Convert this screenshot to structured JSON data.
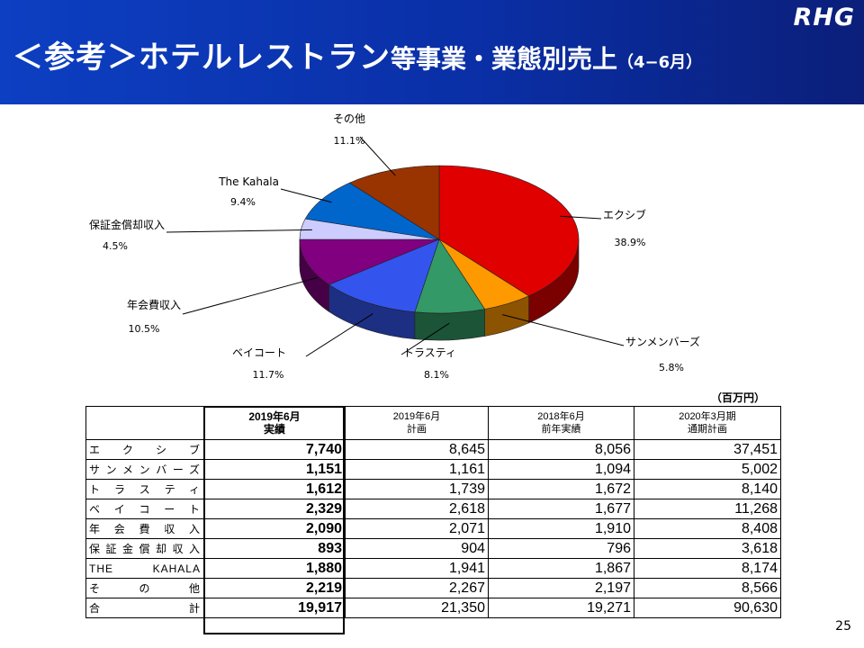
{
  "header": {
    "title_main": "＜参考＞ホテルレストラン",
    "title_sub": "等事業・業態別売上",
    "title_period": "（4−6月）",
    "logo_text": "RHG"
  },
  "chart_data": {
    "type": "pie",
    "title": "",
    "slices": [
      {
        "label": "エクシブ",
        "percent": 38.9,
        "percent_label": "38.9%",
        "color": "#e00000"
      },
      {
        "label": "サンメンバーズ",
        "percent": 5.8,
        "percent_label": "5.8%",
        "color": "#ff9900"
      },
      {
        "label": "トラスティ",
        "percent": 8.1,
        "percent_label": "8.1%",
        "color": "#339966"
      },
      {
        "label": "ベイコート",
        "percent": 11.7,
        "percent_label": "11.7%",
        "color": "#3355ee"
      },
      {
        "label": "年会費収入",
        "percent": 10.5,
        "percent_label": "10.5%",
        "color": "#800080"
      },
      {
        "label": "保証金償却収入",
        "percent": 4.5,
        "percent_label": "4.5%",
        "color": "#ccccff"
      },
      {
        "label": "The Kahala",
        "percent": 9.4,
        "percent_label": "9.4%",
        "color": "#0066cc"
      },
      {
        "label": "その他",
        "percent": 11.1,
        "percent_label": "11.1%",
        "color": "#993300"
      }
    ]
  },
  "table": {
    "unit": "（百万円）",
    "columns": [
      {
        "line1": "2019年6月",
        "line2": "実績"
      },
      {
        "line1": "2019年6月",
        "line2": "計画"
      },
      {
        "line1": "2018年6月",
        "line2": "前年実績"
      },
      {
        "line1": "2020年3月期",
        "line2": "通期計画"
      }
    ],
    "rows": [
      {
        "name": "エクシブ",
        "values": [
          "7,740",
          "8,645",
          "8,056",
          "37,451"
        ]
      },
      {
        "name": "サンメンバーズ",
        "values": [
          "1,151",
          "1,161",
          "1,094",
          "5,002"
        ]
      },
      {
        "name": "トラスティ",
        "values": [
          "1,612",
          "1,739",
          "1,672",
          "8,140"
        ]
      },
      {
        "name": "ベイコート",
        "values": [
          "2,329",
          "2,618",
          "1,677",
          "11,268"
        ]
      },
      {
        "name": "年会費収入",
        "values": [
          "2,090",
          "2,071",
          "1,910",
          "8,408"
        ]
      },
      {
        "name": "保証金償却収入",
        "values": [
          "893",
          "904",
          "796",
          "3,618"
        ]
      },
      {
        "name": "THE KAHALA",
        "values": [
          "1,880",
          "1,941",
          "1,867",
          "8,174"
        ]
      },
      {
        "name": "その他",
        "values": [
          "2,219",
          "2,267",
          "2,197",
          "8,566"
        ]
      },
      {
        "name": "合計",
        "values": [
          "19,917",
          "21,350",
          "19,271",
          "90,630"
        ]
      }
    ]
  },
  "page_number": "25"
}
